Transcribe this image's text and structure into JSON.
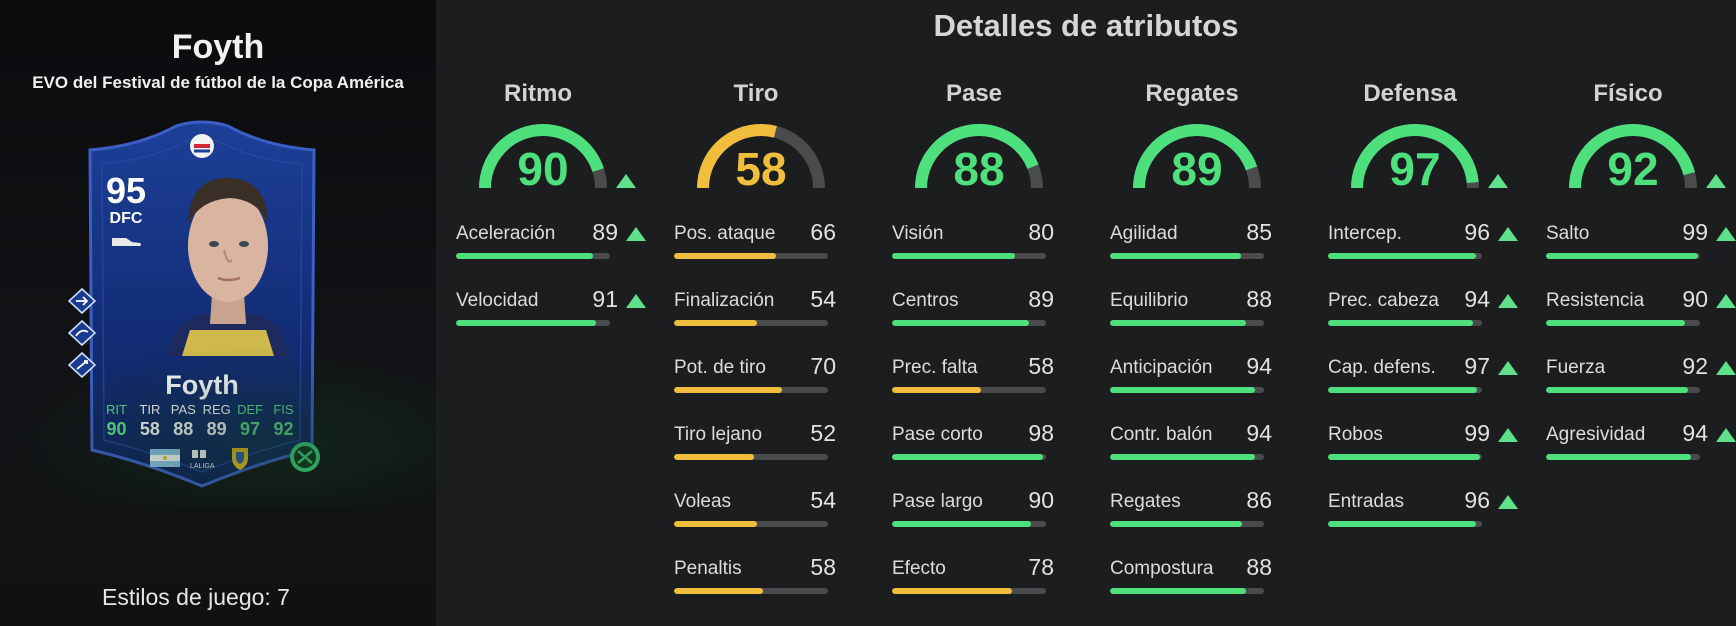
{
  "player": {
    "name": "Foyth",
    "subtitle": "EVO del Festival de fútbol de la Copa América",
    "playstyles_label": "Estilos de juego: 7"
  },
  "card": {
    "overall": "95",
    "position": "DFC",
    "name": "Foyth",
    "stat_labels": [
      "RIT",
      "TIR",
      "PAS",
      "REG",
      "DEF",
      "FIS"
    ],
    "stat_values": [
      "90",
      "58",
      "88",
      "89",
      "97",
      "92"
    ],
    "league_text": "LALIGA"
  },
  "details_title": "Detalles de atributos",
  "colors": {
    "green": "#4ee07d",
    "yellow": "#f0bd3c",
    "track": "#4a4b4d"
  },
  "categories": [
    {
      "label": "Ritmo",
      "value": "90",
      "color": "green",
      "boosted": true,
      "stats": [
        {
          "name": "Aceleración",
          "value": "89",
          "boosted": true
        },
        {
          "name": "Velocidad",
          "value": "91",
          "boosted": true
        }
      ]
    },
    {
      "label": "Tiro",
      "value": "58",
      "color": "yellow",
      "boosted": false,
      "stats": [
        {
          "name": "Pos. ataque",
          "value": "66",
          "boosted": false
        },
        {
          "name": "Finalización",
          "value": "54",
          "boosted": false
        },
        {
          "name": "Pot. de tiro",
          "value": "70",
          "boosted": false
        },
        {
          "name": "Tiro lejano",
          "value": "52",
          "boosted": false
        },
        {
          "name": "Voleas",
          "value": "54",
          "boosted": false
        },
        {
          "name": "Penaltis",
          "value": "58",
          "boosted": false
        }
      ]
    },
    {
      "label": "Pase",
      "value": "88",
      "color": "green",
      "boosted": false,
      "stats": [
        {
          "name": "Visión",
          "value": "80",
          "boosted": false
        },
        {
          "name": "Centros",
          "value": "89",
          "boosted": false
        },
        {
          "name": "Prec. falta",
          "value": "58",
          "boosted": false
        },
        {
          "name": "Pase corto",
          "value": "98",
          "boosted": false
        },
        {
          "name": "Pase largo",
          "value": "90",
          "boosted": false
        },
        {
          "name": "Efecto",
          "value": "78",
          "boosted": false
        }
      ]
    },
    {
      "label": "Regates",
      "value": "89",
      "color": "green",
      "boosted": false,
      "stats": [
        {
          "name": "Agilidad",
          "value": "85",
          "boosted": false
        },
        {
          "name": "Equilibrio",
          "value": "88",
          "boosted": false
        },
        {
          "name": "Anticipación",
          "value": "94",
          "boosted": false
        },
        {
          "name": "Contr. balón",
          "value": "94",
          "boosted": false
        },
        {
          "name": "Regates",
          "value": "86",
          "boosted": false
        },
        {
          "name": "Compostura",
          "value": "88",
          "boosted": false
        }
      ]
    },
    {
      "label": "Defensa",
      "value": "97",
      "color": "green",
      "boosted": true,
      "stats": [
        {
          "name": "Intercep.",
          "value": "96",
          "boosted": true
        },
        {
          "name": "Prec. cabeza",
          "value": "94",
          "boosted": true
        },
        {
          "name": "Cap. defens.",
          "value": "97",
          "boosted": true
        },
        {
          "name": "Robos",
          "value": "99",
          "boosted": true
        },
        {
          "name": "Entradas",
          "value": "96",
          "boosted": true
        }
      ]
    },
    {
      "label": "Físico",
      "value": "92",
      "color": "green",
      "boosted": true,
      "stats": [
        {
          "name": "Salto",
          "value": "99",
          "boosted": true
        },
        {
          "name": "Resistencia",
          "value": "90",
          "boosted": true
        },
        {
          "name": "Fuerza",
          "value": "92",
          "boosted": true
        },
        {
          "name": "Agresividad",
          "value": "94",
          "boosted": true
        }
      ]
    }
  ]
}
